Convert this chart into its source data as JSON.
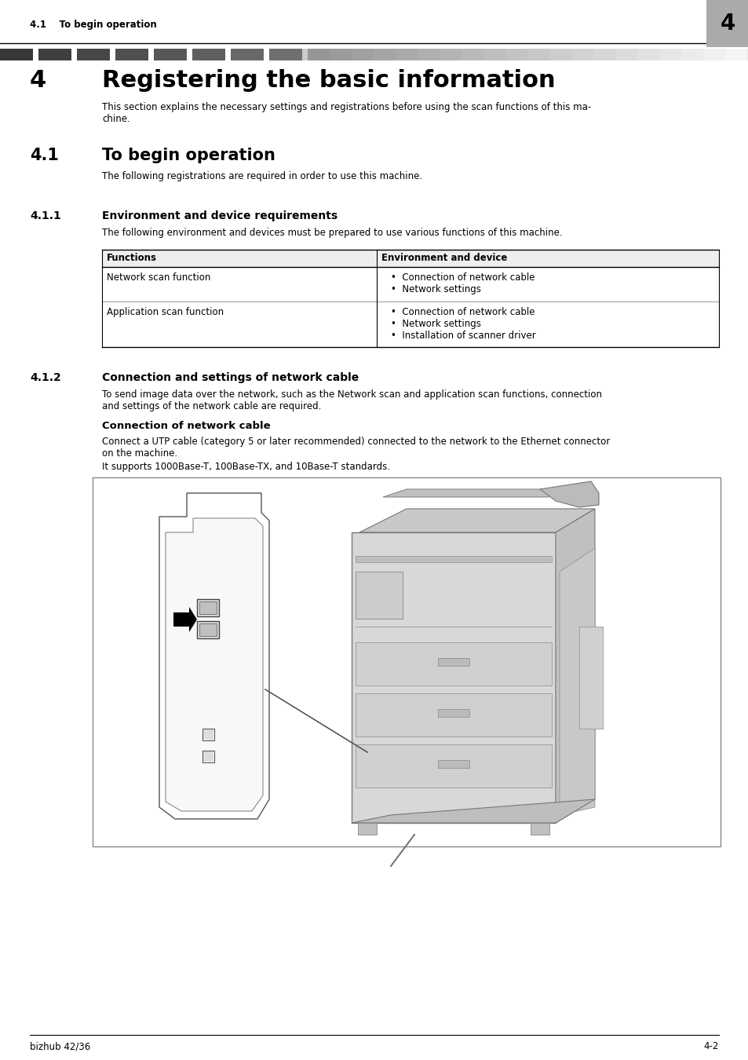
{
  "page_bg": "#ffffff",
  "header_text_left": "4.1    To begin operation",
  "header_num": "4",
  "header_num_bg": "#aaaaaa",
  "chapter_num": "4",
  "chapter_title": "Registering the basic information",
  "chapter_intro": "This section explains the necessary settings and registrations before using the scan functions of this ma-\nchine.",
  "section1_num": "4.1",
  "section1_title": "To begin operation",
  "section1_text": "The following registrations are required in order to use this machine.",
  "section2_num": "4.1.1",
  "section2_title": "Environment and device requirements",
  "section2_text": "The following environment and devices must be prepared to use various functions of this machine.",
  "table_header_col1": "Functions",
  "table_header_col2": "Environment and device",
  "table_row1_col1": "Network scan function",
  "table_row1_col2": [
    "Connection of network cable",
    "Network settings"
  ],
  "table_row2_col1": "Application scan function",
  "table_row2_col2": [
    "Connection of network cable",
    "Network settings",
    "Installation of scanner driver"
  ],
  "section3_num": "4.1.2",
  "section3_title": "Connection and settings of network cable",
  "section3_text": "To send image data over the network, such as the Network scan and application scan functions, connection\nand settings of the network cable are required.",
  "subsection_title": "Connection of network cable",
  "subsection_text1": "Connect a UTP cable (category 5 or later recommended) connected to the network to the Ethernet connector\non the machine.",
  "subsection_text2": "It supports 1000Base-T, 100Base-TX, and 10Base-T standards.",
  "footer_left": "bizhub 42/36",
  "footer_right": "4-2"
}
